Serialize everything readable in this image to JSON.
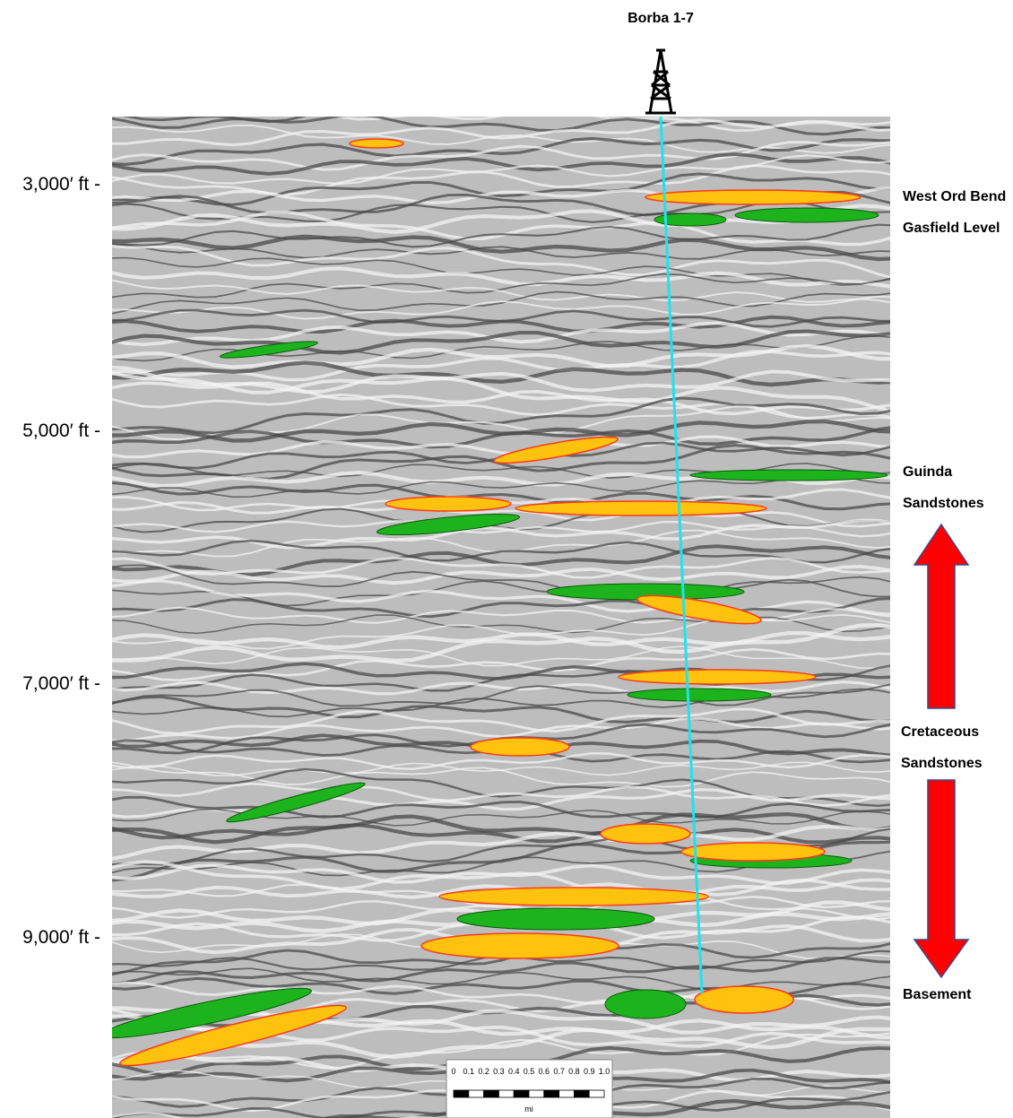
{
  "well": {
    "label": "Borba 1-7"
  },
  "depth_labels": [
    "3,000′ ft -",
    "5,000′ ft -",
    "7,000′ ft -",
    "9,000′ ft -"
  ],
  "annotations": [
    {
      "lines": [
        "West Ord Bend",
        "Gasfield Level"
      ]
    },
    {
      "lines": [
        "Guinda",
        "Sandstones"
      ]
    },
    {
      "lines": [
        "Cretaceous",
        "Sandstones"
      ]
    },
    {
      "lines": [
        "Basement"
      ]
    }
  ],
  "scale_bar": {
    "ticks": [
      "0",
      "0.1",
      "0.2",
      "0.3",
      "0.4",
      "0.5",
      "0.6",
      "0.7",
      "0.8",
      "0.9",
      "1.0"
    ],
    "unit": "mi"
  }
}
